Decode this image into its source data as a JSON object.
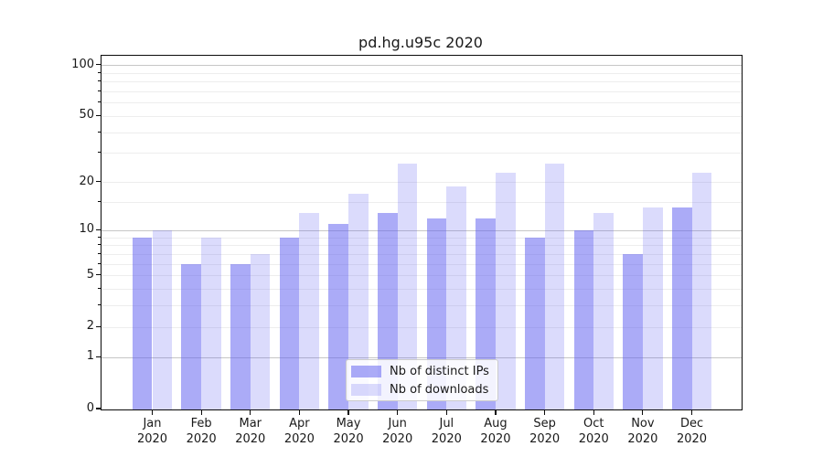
{
  "chart_data": {
    "type": "bar",
    "title": "pd.hg.u95c 2020",
    "categories": [
      "Jan 2020",
      "Feb 2020",
      "Mar 2020",
      "Apr 2020",
      "May 2020",
      "Jun 2020",
      "Jul 2020",
      "Aug 2020",
      "Sep 2020",
      "Oct 2020",
      "Nov 2020",
      "Dec 2020"
    ],
    "series": [
      {
        "name": "Nb of distinct IPs",
        "color": "rgba(93,93,240,0.52)",
        "values": [
          9,
          6,
          6,
          9,
          11,
          13,
          12,
          12,
          9,
          10,
          7,
          14
        ]
      },
      {
        "name": "Nb of downloads",
        "color": "rgba(93,93,240,0.22)",
        "values": [
          10,
          9,
          7,
          13,
          17,
          26,
          19,
          23,
          26,
          13,
          14,
          23
        ]
      }
    ],
    "y_axis": {
      "scale": "log1p",
      "ticks": [
        0,
        1,
        2,
        5,
        10,
        20,
        50,
        100
      ],
      "major_grid_ticks": [
        1,
        10,
        100
      ],
      "minor_ticks": [
        3,
        4,
        6,
        7,
        8,
        9,
        15,
        30,
        40,
        60,
        70,
        80,
        90
      ],
      "range": [
        0,
        114
      ],
      "grid": true
    },
    "legend": {
      "position": "lower center"
    },
    "colors": {
      "major_grid": "#c6c6c6",
      "minor_grid": "#ededed",
      "axis": "#0a0a0a",
      "text": "#191919",
      "background": "#ffffff",
      "legend_border": "#cbcbcb"
    }
  }
}
